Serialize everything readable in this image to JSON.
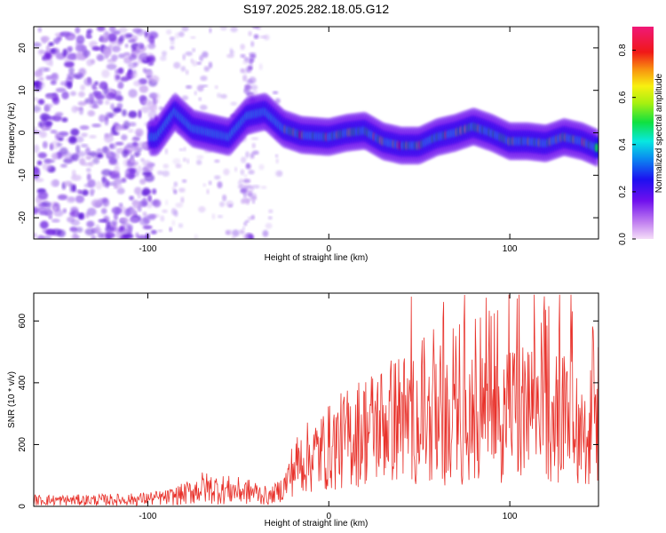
{
  "title": "S197.2025.282.18.05.G12",
  "chart_data": [
    {
      "type": "heatmap",
      "xlabel": "Height of straight line (km)",
      "ylabel": "Frequency (Hz)",
      "xlim": [
        -163,
        149
      ],
      "ylim": [
        -25,
        25
      ],
      "xticks": [
        -100,
        0,
        100
      ],
      "yticks": [
        -20,
        -10,
        0,
        10,
        20
      ],
      "xtick_labels": [
        "-100",
        "0",
        "100"
      ],
      "ytick_labels": [
        "-20",
        "-10",
        "0",
        "10",
        "20"
      ],
      "colorbar": {
        "label": "Normalized spectral amplitude",
        "range": [
          0,
          0.9
        ],
        "ticks": [
          0,
          0.2,
          0.4,
          0.6,
          0.8
        ],
        "tick_labels": [
          "0.0",
          "0.2",
          "0.4",
          "0.6",
          "0.8"
        ]
      },
      "ridge": {
        "x": [
          -95,
          -85,
          -75,
          -65,
          -55,
          -45,
          -35,
          -25,
          -15,
          0,
          10,
          20,
          30,
          40,
          50,
          60,
          70,
          80,
          90,
          100,
          110,
          120,
          130,
          140,
          148
        ],
        "y": [
          -1,
          5,
          1,
          0,
          -1,
          4,
          5,
          1,
          -0.5,
          -1,
          0,
          0.5,
          -2,
          -3,
          -3,
          -1,
          0,
          1.5,
          0,
          -2,
          -2,
          -2.5,
          -1,
          -2,
          -3.5
        ]
      }
    },
    {
      "type": "line",
      "xlabel": "Height of straight line (km)",
      "ylabel": "SNR (10 * v/v)",
      "xlim": [
        -163,
        149
      ],
      "ylim": [
        0,
        690
      ],
      "xticks": [
        -100,
        0,
        100
      ],
      "yticks": [
        0,
        200,
        400,
        600
      ],
      "xtick_labels": [
        "-100",
        "0",
        "100"
      ],
      "ytick_labels": [
        "0",
        "200",
        "400",
        "600"
      ],
      "color": "#e8322b",
      "envelope": {
        "x": [
          -163,
          -140,
          -110,
          -90,
          -80,
          -70,
          -60,
          -50,
          -40,
          -33,
          -25,
          -20,
          -15,
          -10,
          0,
          10,
          20,
          30,
          40,
          50,
          60,
          70,
          80,
          90,
          100,
          110,
          120,
          130,
          140,
          149
        ],
        "y": [
          20,
          20,
          22,
          28,
          40,
          60,
          55,
          50,
          45,
          30,
          60,
          120,
          150,
          160,
          190,
          220,
          250,
          270,
          290,
          280,
          270,
          270,
          280,
          290,
          300,
          300,
          300,
          290,
          280,
          240
        ]
      }
    }
  ]
}
